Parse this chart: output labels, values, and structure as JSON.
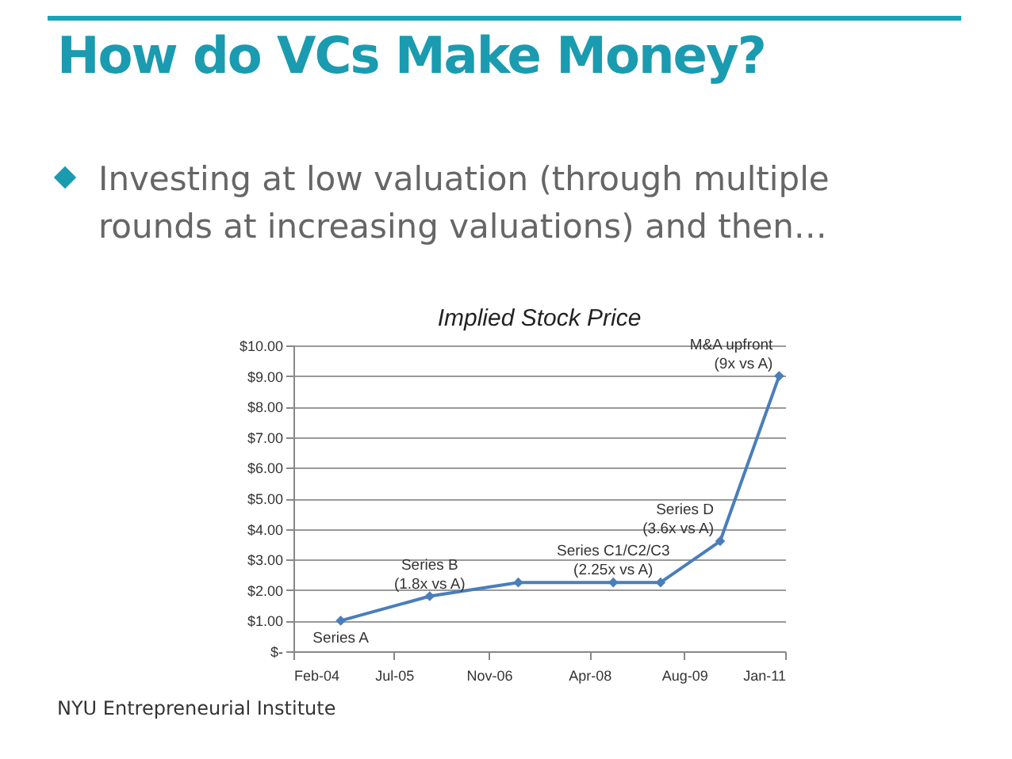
{
  "chart_data": {
    "type": "line",
    "title": "Implied Stock Price",
    "annotations": [
      "How do VCs Make Money?",
      "Investing at low valuation (through multiple rounds at increasing valuations) and then…",
      "NYU Entrepreneurial Institute",
      {
        "text": "Series A",
        "x": "2004-10",
        "y": 1.0
      },
      {
        "text": "Series B\n(1.8x vs A)",
        "x": "2006-01",
        "y": 1.8
      },
      {
        "text": "Series C1/C2/C3\n(2.25x vs A)",
        "x": "2008-08",
        "y": 2.25
      },
      {
        "text": "Series D\n(3.6x vs A)",
        "x": "2010-02",
        "y": 3.6
      },
      {
        "text": "M&A upfront\n(9x vs A)",
        "x": "2010-12",
        "y": 9.0
      }
    ],
    "x": [
      "2004-10",
      "2006-01",
      "2007-04",
      "2008-08",
      "2009-04",
      "2010-02",
      "2010-12"
    ],
    "series": [
      {
        "color": "#4a7ebb",
        "values": [
          1.0,
          1.8,
          2.25,
          2.25,
          2.25,
          3.6,
          9.0
        ]
      }
    ],
    "xlim": [
      "2004-02",
      "2011-01"
    ],
    "xticks": [
      {
        "value": "2004-02",
        "label": "Feb-04"
      },
      {
        "value": "2005-07",
        "label": "Jul-05"
      },
      {
        "value": "2006-11",
        "label": "Nov-06"
      },
      {
        "value": "2008-04",
        "label": "Apr-08"
      },
      {
        "value": "2009-08",
        "label": "Aug-09"
      },
      {
        "value": "2011-01",
        "label": "Jan-11"
      }
    ],
    "ylim": [
      0,
      10
    ],
    "yticks": [
      {
        "value": 0,
        "label": "$-"
      },
      {
        "value": 1,
        "label": "$1.00"
      },
      {
        "value": 2,
        "label": "$2.00"
      },
      {
        "value": 3,
        "label": "$3.00"
      },
      {
        "value": 4,
        "label": "$4.00"
      },
      {
        "value": 5,
        "label": "$5.00"
      },
      {
        "value": 6,
        "label": "$6.00"
      },
      {
        "value": 7,
        "label": "$7.00"
      },
      {
        "value": 8,
        "label": "$8.00"
      },
      {
        "value": 9,
        "label": "$9.00"
      },
      {
        "value": 10,
        "label": "$10.00"
      }
    ],
    "grid": "y",
    "marker": "diamond",
    "line_style": "solid"
  }
}
